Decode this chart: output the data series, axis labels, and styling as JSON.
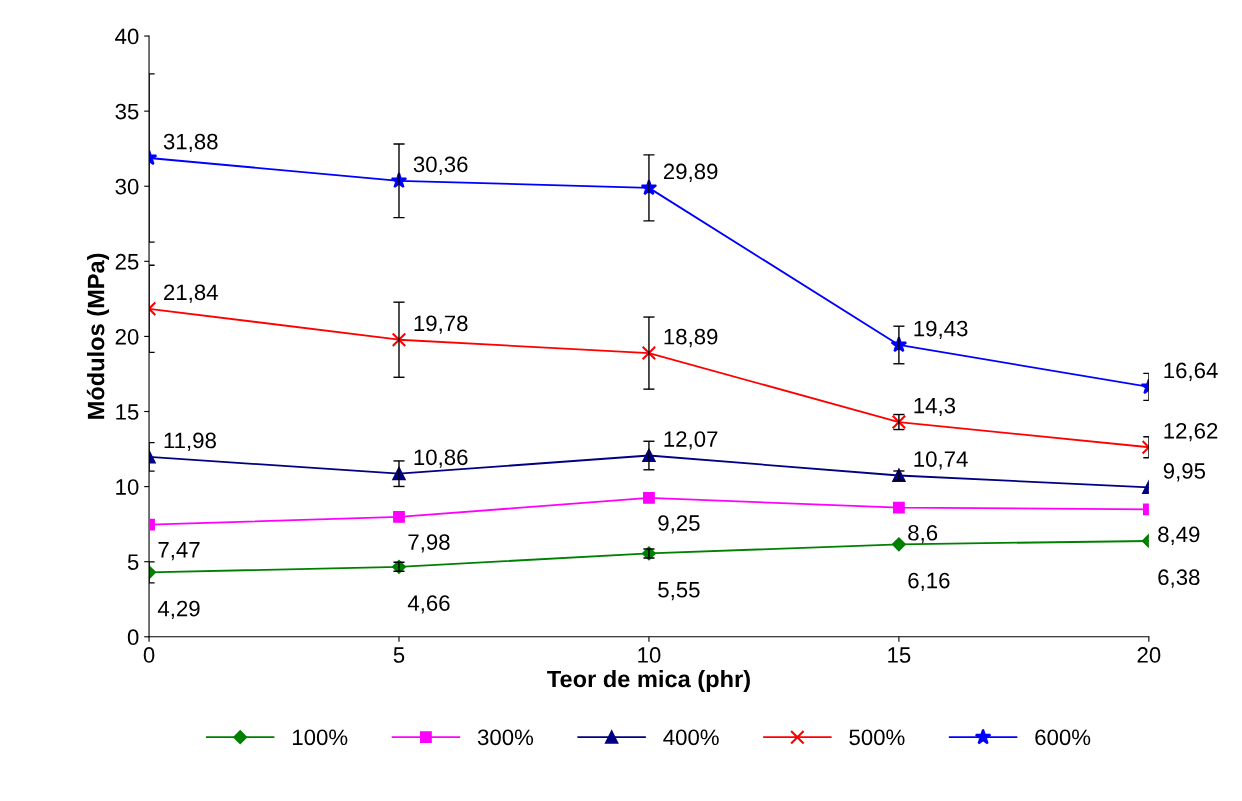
{
  "chart_data": {
    "type": "line",
    "xlabel": "Teor de mica (phr)",
    "ylabel": "Módulos (MPa)",
    "x": [
      0,
      5,
      10,
      15,
      20
    ],
    "xlim": [
      0,
      20
    ],
    "xticks": [
      0,
      5,
      10,
      15,
      20
    ],
    "ylim": [
      0,
      40
    ],
    "yticks": [
      0,
      5,
      10,
      15,
      20,
      25,
      30,
      35,
      40
    ],
    "grid": false,
    "legend": "bottom",
    "series": [
      {
        "name": "100%",
        "color": "#008000",
        "marker": "diamond",
        "values": [
          4.29,
          4.66,
          5.55,
          6.16,
          6.38
        ],
        "errors": [
          0.7,
          0.3,
          0.3,
          null,
          null
        ],
        "value_labels": [
          "4,29",
          "4,66",
          "5,55",
          "6,16",
          "6,38"
        ]
      },
      {
        "name": "300%",
        "color": "#ff00ff",
        "marker": "square",
        "values": [
          7.47,
          7.98,
          9.25,
          8.6,
          8.49
        ],
        "errors": [
          null,
          null,
          null,
          null,
          null
        ],
        "value_labels": [
          "7,47",
          "7,98",
          "9,25",
          "8,6",
          "8,49"
        ]
      },
      {
        "name": "400%",
        "color": "#000080",
        "marker": "triangle",
        "values": [
          11.98,
          10.86,
          12.07,
          10.74,
          9.95
        ],
        "errors": [
          0.95,
          0.85,
          0.95,
          0.3,
          null
        ],
        "value_labels": [
          "11,98",
          "10,86",
          "12,07",
          "10,74",
          "9,95"
        ]
      },
      {
        "name": "500%",
        "color": "#ff0000",
        "marker": "cross",
        "values": [
          21.84,
          19.78,
          18.89,
          14.3,
          12.62
        ],
        "errors": [
          2.9,
          2.5,
          2.4,
          0.5,
          0.7
        ],
        "value_labels": [
          "21,84",
          "19,78",
          "18,89",
          "14,3",
          "12,62"
        ]
      },
      {
        "name": "600%",
        "color": "#0000ff",
        "marker": "star",
        "values": [
          31.88,
          30.36,
          29.89,
          19.43,
          16.64
        ],
        "errors": [
          5.6,
          2.45,
          2.2,
          1.25,
          0.9
        ],
        "value_labels": [
          "31,88",
          "30,36",
          "29,89",
          "19,43",
          "16,64"
        ]
      }
    ]
  }
}
